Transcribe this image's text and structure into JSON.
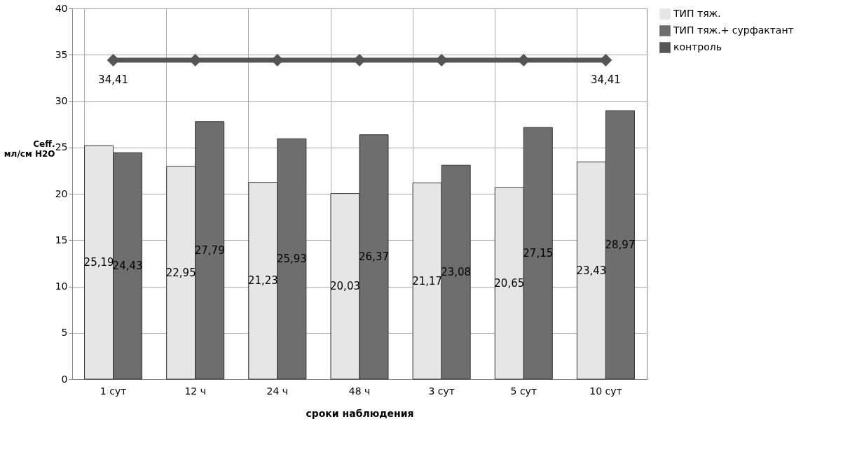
{
  "chart_data": {
    "type": "bar",
    "categories": [
      "1 сут",
      "12 ч",
      "24 ч",
      "48 ч",
      "3 сут",
      "5 сут",
      "10 сут"
    ],
    "xlabel": "сроки наблюдения",
    "ylabel": "Ceff.\nмл/см H2O",
    "ylim": [
      0,
      40
    ],
    "yticks": [
      0,
      5,
      10,
      15,
      20,
      25,
      30,
      35,
      40
    ],
    "grid": true,
    "legend": "right",
    "marker": "diamond",
    "line_style": "solid",
    "series": [
      {
        "name": "ТИП тяж.",
        "type": "bar",
        "color": "#e6e6e6",
        "values": [
          25.19,
          22.95,
          21.23,
          20.03,
          21.17,
          20.65,
          23.43
        ],
        "value_labels": [
          "25,19",
          "22,95",
          "21,23",
          "20,03",
          "21,17",
          "20,65",
          "23,43"
        ]
      },
      {
        "name": "ТИП тяж.+ сурфактант",
        "type": "bar",
        "color": "#6e6e6e",
        "values": [
          24.43,
          27.79,
          25.93,
          26.37,
          23.08,
          27.15,
          28.97
        ],
        "value_labels": [
          "24,43",
          "27,79",
          "25,93",
          "26,37",
          "23,08",
          "27,15",
          "28,97"
        ]
      },
      {
        "name": "контроль",
        "type": "line",
        "color": "#555555",
        "values": [
          34.41,
          34.41,
          34.41,
          34.41,
          34.41,
          34.41,
          34.41
        ],
        "value_labels": [
          "34,41",
          null,
          null,
          null,
          null,
          null,
          "34,41"
        ]
      }
    ]
  }
}
